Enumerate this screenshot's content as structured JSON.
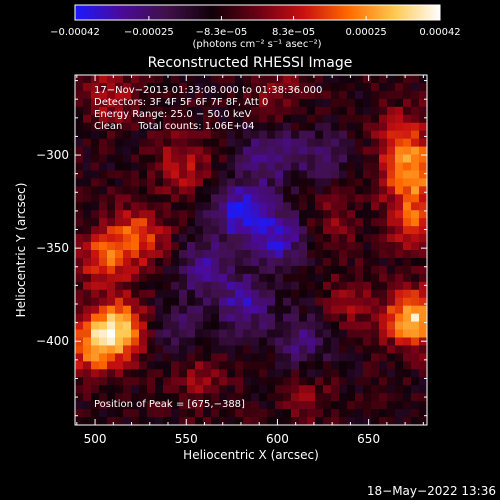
{
  "chart_data": {
    "type": "heatmap",
    "title": "Reconstructed RHESSI Image",
    "xlabel": "Heliocentric X (arcsec)",
    "ylabel": "Heliocentric Y (arcsec)",
    "xlim": [
      489,
      682
    ],
    "ylim": [
      -445,
      -257
    ],
    "x_ticks": [
      500,
      550,
      600,
      650
    ],
    "y_ticks": [
      -300,
      -350,
      -400
    ],
    "x_tick_labels": [
      "500",
      "550",
      "600",
      "650"
    ],
    "y_tick_labels": [
      "−300",
      "−350",
      "−400"
    ],
    "grid": false,
    "colorbar": {
      "vmin": -0.00042,
      "vmax": 0.00042,
      "ticks": [
        -0.00042,
        -0.00025,
        -8.3e-05,
        8.3e-05,
        0.00025,
        0.00042
      ],
      "tick_labels": [
        "−0.00042",
        "−0.00025",
        "−8.3e−05",
        "8.3e−05",
        "0.00025",
        "0.00042"
      ],
      "unit_label": "(photons cm⁻² s⁻¹ asec⁻²)",
      "colors": [
        "#1a1aff",
        "#4a0a9a",
        "#40104a",
        "#100008",
        "#6a0014",
        "#c81010",
        "#ff6a00",
        "#ffc850",
        "#ffffff"
      ]
    },
    "info_lines": [
      "17−Nov−2013 01:33:08.000 to 01:38:36.000",
      "Detectors: 3F 4F 5F 6F 7F 8F, Att 0",
      "Energy Range: 25.0 − 50.0 keV",
      "Clean     Total counts: 1.06E+04"
    ],
    "peak_label": "Position of Peak = [675,−388]",
    "bright_regions": [
      {
        "x": 512,
        "y": -393,
        "value": 0.00042
      },
      {
        "x": 505,
        "y": -355,
        "value": 0.00025
      },
      {
        "x": 524,
        "y": -343,
        "value": 0.00025
      },
      {
        "x": 498,
        "y": -405,
        "value": 0.00025
      },
      {
        "x": 675,
        "y": -388,
        "value": 0.00042
      },
      {
        "x": 673,
        "y": -310,
        "value": 0.0003
      },
      {
        "x": 675,
        "y": -335,
        "value": 0.00025
      },
      {
        "x": 670,
        "y": -290,
        "value": 0.0002
      },
      {
        "x": 508,
        "y": -268,
        "value": 0.00015
      },
      {
        "x": 548,
        "y": -305,
        "value": 0.00018
      },
      {
        "x": 600,
        "y": -268,
        "value": 0.00012
      },
      {
        "x": 630,
        "y": -335,
        "value": 0.0001
      },
      {
        "x": 640,
        "y": -380,
        "value": 0.00012
      },
      {
        "x": 555,
        "y": -420,
        "value": 0.00012
      },
      {
        "x": 615,
        "y": -430,
        "value": 0.0001
      }
    ],
    "dark_regions": [
      {
        "x": 580,
        "y": -330,
        "value": -0.0003
      },
      {
        "x": 600,
        "y": -345,
        "value": -0.00025
      },
      {
        "x": 582,
        "y": -380,
        "value": -0.00022
      },
      {
        "x": 560,
        "y": -360,
        "value": -0.0002
      },
      {
        "x": 595,
        "y": -300,
        "value": -0.0002
      },
      {
        "x": 615,
        "y": -400,
        "value": -0.00018
      },
      {
        "x": 545,
        "y": -395,
        "value": -0.00015
      },
      {
        "x": 625,
        "y": -300,
        "value": -0.00015
      }
    ]
  },
  "footer": {
    "date": "18−May−2022 13:36"
  }
}
